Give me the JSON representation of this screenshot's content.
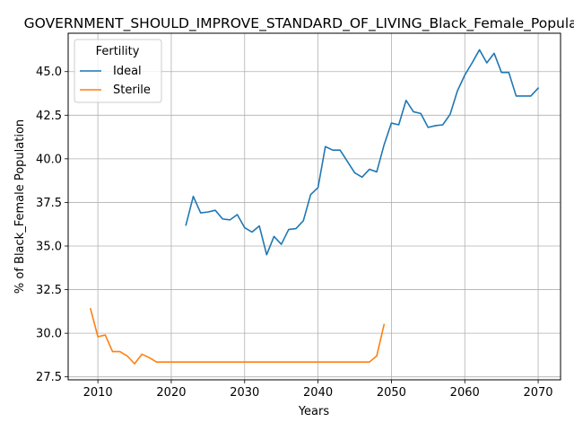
{
  "chart_data": {
    "type": "line",
    "title": "GOVERNMENT_SHOULD_IMPROVE_STANDARD_OF_LIVING_Black_Female_Population",
    "xlabel": "Years",
    "ylabel": "% of Black_Female Population",
    "xlim": [
      2005.95,
      2073.05
    ],
    "ylim": [
      27.33,
      47.2
    ],
    "grid": true,
    "x_ticks": [
      2010,
      2020,
      2030,
      2040,
      2050,
      2060,
      2070
    ],
    "y_ticks": [
      27.5,
      30.0,
      32.5,
      35.0,
      37.5,
      40.0,
      42.5,
      45.0
    ],
    "legend": {
      "title": "Fertility",
      "placement": "top-left"
    },
    "series": [
      {
        "name": "Ideal",
        "color": "#1f77b4",
        "x": [
          2022,
          2023,
          2024,
          2025,
          2026,
          2027,
          2028,
          2029,
          2030,
          2031,
          2032,
          2033,
          2034,
          2035,
          2036,
          2037,
          2038,
          2039,
          2040,
          2041,
          2042,
          2043,
          2044,
          2045,
          2046,
          2047,
          2048,
          2049,
          2050,
          2051,
          2052,
          2053,
          2054,
          2055,
          2056,
          2057,
          2058,
          2059,
          2060,
          2061,
          2062,
          2063,
          2064,
          2065,
          2066,
          2067,
          2068,
          2069,
          2070
        ],
        "y": [
          36.2,
          37.85,
          36.9,
          36.95,
          37.05,
          36.55,
          36.5,
          36.8,
          36.05,
          35.8,
          36.15,
          34.5,
          35.55,
          35.1,
          35.95,
          36.0,
          36.45,
          37.95,
          38.35,
          40.7,
          40.5,
          40.5,
          39.85,
          39.2,
          38.95,
          39.4,
          39.25,
          40.8,
          42.05,
          41.95,
          43.35,
          42.7,
          42.6,
          41.8,
          41.9,
          41.95,
          42.55,
          43.9,
          44.8,
          45.5,
          46.25,
          45.5,
          46.05,
          44.95,
          44.95,
          43.6,
          43.6,
          43.6,
          44.05
        ]
      },
      {
        "name": "Sterile",
        "color": "#ff7f0e",
        "x": [
          2009,
          2010,
          2011,
          2012,
          2013,
          2014,
          2015,
          2016,
          2017,
          2018,
          2019,
          2020,
          2021,
          2022,
          2023,
          2024,
          2025,
          2026,
          2027,
          2028,
          2029,
          2030,
          2031,
          2032,
          2033,
          2034,
          2035,
          2036,
          2037,
          2038,
          2039,
          2040,
          2041,
          2042,
          2043,
          2044,
          2045,
          2046,
          2047,
          2048,
          2049
        ],
        "y": [
          31.4,
          29.8,
          29.9,
          28.95,
          28.95,
          28.7,
          28.25,
          28.8,
          28.6,
          28.35,
          28.35,
          28.35,
          28.35,
          28.35,
          28.35,
          28.35,
          28.35,
          28.35,
          28.35,
          28.35,
          28.35,
          28.35,
          28.35,
          28.35,
          28.35,
          28.35,
          28.35,
          28.35,
          28.35,
          28.35,
          28.35,
          28.35,
          28.35,
          28.35,
          28.35,
          28.35,
          28.35,
          28.35,
          28.35,
          28.7,
          30.5
        ]
      }
    ]
  }
}
